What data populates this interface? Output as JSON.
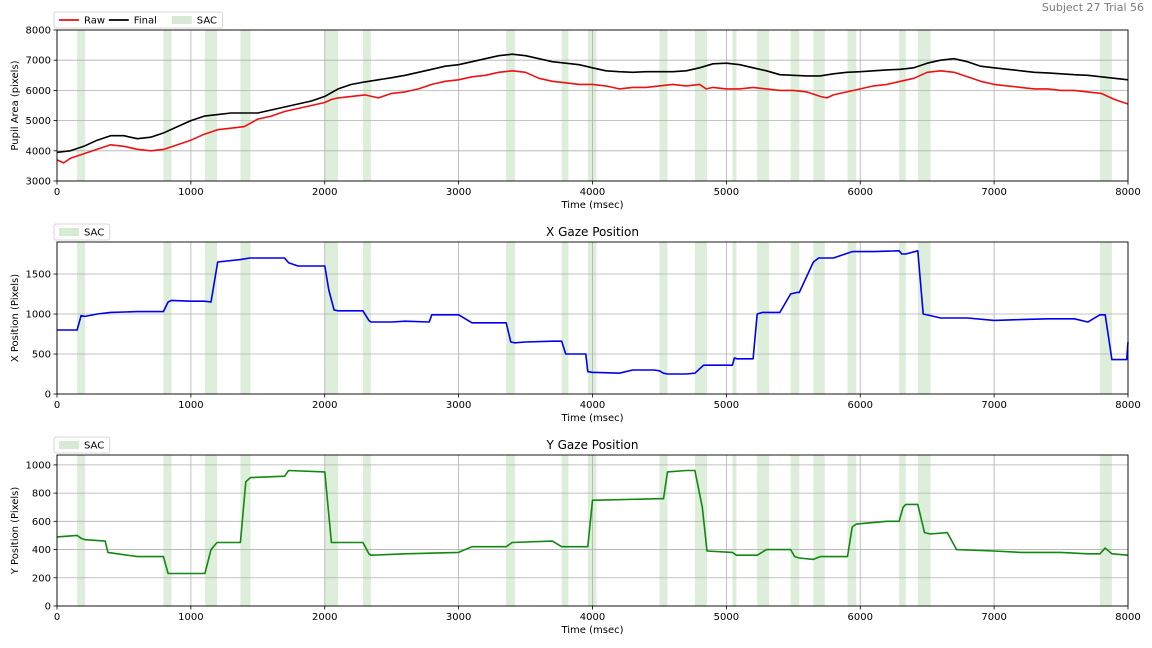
{
  "header": {
    "corner_label": "Subject 27 Trial 56"
  },
  "colors": {
    "raw": "#ee1111",
    "final": "#000000",
    "x_gaze": "#0000ee",
    "y_gaze": "#118811",
    "sac_fill": "#d7ebd4",
    "grid": "#b0b0b0"
  },
  "saccades": [
    [
      150,
      210
    ],
    [
      795,
      855
    ],
    [
      1105,
      1195
    ],
    [
      1370,
      1445
    ],
    [
      2000,
      2100
    ],
    [
      2285,
      2345
    ],
    [
      3355,
      3420
    ],
    [
      3770,
      3820
    ],
    [
      3965,
      4030
    ],
    [
      4500,
      4560
    ],
    [
      4765,
      4855
    ],
    [
      5045,
      5075
    ],
    [
      5230,
      5320
    ],
    [
      5480,
      5545
    ],
    [
      5650,
      5735
    ],
    [
      5905,
      5970
    ],
    [
      6290,
      6340
    ],
    [
      6430,
      6525
    ],
    [
      7790,
      7880
    ]
  ],
  "chart_data": [
    {
      "type": "line",
      "title": "",
      "xlabel": "Time (msec)",
      "ylabel": "Pupil Area (pixels)",
      "xlim": [
        0,
        8000
      ],
      "ylim": [
        3000,
        8000
      ],
      "xticks": [
        0,
        1000,
        2000,
        3000,
        4000,
        5000,
        6000,
        7000,
        8000
      ],
      "yticks": [
        3000,
        4000,
        5000,
        6000,
        7000,
        8000
      ],
      "grid": true,
      "legend": {
        "placement": "top-left",
        "entries": [
          "Raw",
          "Final",
          "SAC"
        ]
      },
      "series": [
        {
          "name": "Raw",
          "color": "#ee1111",
          "x": [
            0,
            50,
            100,
            200,
            300,
            400,
            500,
            600,
            700,
            800,
            900,
            1000,
            1100,
            1200,
            1300,
            1400,
            1500,
            1600,
            1700,
            1800,
            1900,
            2000,
            2050,
            2100,
            2200,
            2300,
            2400,
            2500,
            2600,
            2700,
            2800,
            2900,
            3000,
            3100,
            3200,
            3300,
            3400,
            3500,
            3600,
            3700,
            3800,
            3900,
            4000,
            4100,
            4200,
            4300,
            4400,
            4500,
            4600,
            4700,
            4800,
            4850,
            4900,
            5000,
            5100,
            5200,
            5300,
            5400,
            5500,
            5600,
            5700,
            5750,
            5800,
            5900,
            6000,
            6100,
            6200,
            6300,
            6400,
            6500,
            6600,
            6700,
            6800,
            6900,
            7000,
            7100,
            7200,
            7300,
            7400,
            7500,
            7600,
            7700,
            7800,
            7900,
            8000
          ],
          "y": [
            3700,
            3600,
            3750,
            3900,
            4050,
            4200,
            4150,
            4050,
            4000,
            4050,
            4200,
            4350,
            4550,
            4700,
            4750,
            4800,
            5050,
            5150,
            5300,
            5400,
            5500,
            5600,
            5700,
            5750,
            5800,
            5850,
            5750,
            5900,
            5950,
            6050,
            6200,
            6300,
            6350,
            6450,
            6500,
            6600,
            6650,
            6600,
            6400,
            6300,
            6250,
            6200,
            6200,
            6150,
            6050,
            6100,
            6100,
            6150,
            6200,
            6150,
            6200,
            6050,
            6100,
            6050,
            6050,
            6100,
            6050,
            6000,
            6000,
            5950,
            5800,
            5750,
            5850,
            5950,
            6050,
            6150,
            6200,
            6300,
            6400,
            6600,
            6650,
            6600,
            6450,
            6300,
            6200,
            6150,
            6100,
            6050,
            6050,
            6000,
            6000,
            5950,
            5900,
            5700,
            5550
          ]
        },
        {
          "name": "Final",
          "color": "#000000",
          "x": [
            0,
            100,
            200,
            300,
            400,
            500,
            600,
            700,
            800,
            900,
            1000,
            1100,
            1200,
            1300,
            1400,
            1500,
            1600,
            1700,
            1800,
            1900,
            2000,
            2100,
            2200,
            2300,
            2400,
            2500,
            2600,
            2700,
            2800,
            2900,
            3000,
            3100,
            3200,
            3300,
            3400,
            3500,
            3600,
            3700,
            3800,
            3900,
            4000,
            4100,
            4200,
            4300,
            4400,
            4500,
            4600,
            4700,
            4800,
            4900,
            5000,
            5100,
            5200,
            5300,
            5400,
            5500,
            5600,
            5700,
            5800,
            5900,
            6000,
            6100,
            6200,
            6300,
            6400,
            6500,
            6600,
            6700,
            6800,
            6900,
            7000,
            7100,
            7200,
            7300,
            7400,
            7500,
            7600,
            7700,
            7800,
            7900,
            8000
          ],
          "y": [
            3950,
            4000,
            4150,
            4350,
            4500,
            4500,
            4400,
            4450,
            4600,
            4800,
            5000,
            5150,
            5200,
            5250,
            5250,
            5250,
            5350,
            5450,
            5550,
            5650,
            5800,
            6050,
            6200,
            6280,
            6350,
            6420,
            6500,
            6600,
            6700,
            6800,
            6850,
            6950,
            7050,
            7150,
            7200,
            7150,
            7050,
            6950,
            6900,
            6850,
            6750,
            6650,
            6620,
            6600,
            6620,
            6620,
            6620,
            6650,
            6750,
            6880,
            6900,
            6850,
            6750,
            6650,
            6520,
            6500,
            6480,
            6480,
            6550,
            6600,
            6620,
            6650,
            6680,
            6700,
            6750,
            6900,
            7000,
            7050,
            6950,
            6800,
            6750,
            6700,
            6650,
            6600,
            6580,
            6550,
            6520,
            6500,
            6450,
            6400,
            6350
          ]
        }
      ]
    },
    {
      "type": "line",
      "title": "X Gaze Position",
      "xlabel": "Time (msec)",
      "ylabel": "X Position (Pixels)",
      "xlim": [
        0,
        8000
      ],
      "ylim": [
        0,
        1900
      ],
      "xticks": [
        0,
        1000,
        2000,
        3000,
        4000,
        5000,
        6000,
        7000,
        8000
      ],
      "yticks": [
        0,
        500,
        1000,
        1500
      ],
      "grid": true,
      "legend": {
        "placement": "top-left",
        "entries": [
          "SAC"
        ]
      },
      "series": [
        {
          "name": "",
          "color": "#0000ee",
          "x": [
            0,
            150,
            180,
            210,
            300,
            400,
            600,
            795,
            830,
            855,
            1000,
            1100,
            1150,
            1200,
            1370,
            1440,
            1600,
            1700,
            1730,
            1800,
            2000,
            2030,
            2070,
            2100,
            2285,
            2330,
            2345,
            2500,
            2600,
            2780,
            2800,
            2960,
            3000,
            3100,
            3200,
            3355,
            3390,
            3420,
            3500,
            3700,
            3770,
            3800,
            3820,
            3950,
            3965,
            4000,
            4030,
            4200,
            4300,
            4460,
            4500,
            4530,
            4560,
            4700,
            4765,
            4830,
            4855,
            5000,
            5045,
            5060,
            5080,
            5200,
            5230,
            5270,
            5320,
            5400,
            5480,
            5530,
            5545,
            5650,
            5690,
            5735,
            5800,
            5905,
            5940,
            5970,
            6100,
            6290,
            6310,
            6340,
            6430,
            6470,
            6525,
            6600,
            6800,
            7000,
            7200,
            7400,
            7600,
            7700,
            7790,
            7830,
            7880,
            7990,
            8000
          ],
          "y": [
            800,
            800,
            980,
            970,
            1000,
            1020,
            1030,
            1030,
            1150,
            1170,
            1160,
            1160,
            1150,
            1650,
            1680,
            1700,
            1700,
            1700,
            1640,
            1600,
            1600,
            1300,
            1050,
            1040,
            1040,
            920,
            900,
            900,
            910,
            900,
            990,
            990,
            990,
            890,
            890,
            890,
            650,
            640,
            650,
            660,
            660,
            500,
            500,
            500,
            280,
            270,
            270,
            260,
            300,
            300,
            290,
            260,
            250,
            250,
            260,
            360,
            360,
            360,
            360,
            450,
            440,
            440,
            1000,
            1020,
            1020,
            1020,
            1250,
            1270,
            1270,
            1650,
            1700,
            1700,
            1700,
            1760,
            1780,
            1780,
            1780,
            1790,
            1750,
            1750,
            1790,
            1000,
            980,
            950,
            950,
            920,
            930,
            940,
            940,
            900,
            990,
            990,
            430,
            430,
            650
          ]
        }
      ]
    },
    {
      "type": "line",
      "title": "Y Gaze Position",
      "xlabel": "Time (msec)",
      "ylabel": "Y Position (Pixels)",
      "xlim": [
        0,
        8000
      ],
      "ylim": [
        0,
        1070
      ],
      "xticks": [
        0,
        1000,
        2000,
        3000,
        4000,
        5000,
        6000,
        7000,
        8000
      ],
      "yticks": [
        0,
        200,
        400,
        600,
        800,
        1000
      ],
      "grid": true,
      "legend": {
        "placement": "top-left",
        "entries": [
          "SAC"
        ]
      },
      "series": [
        {
          "name": "",
          "color": "#118811",
          "x": [
            0,
            150,
            180,
            210,
            360,
            380,
            600,
            795,
            830,
            855,
            1000,
            1105,
            1150,
            1195,
            1300,
            1370,
            1410,
            1445,
            1700,
            1730,
            2000,
            2050,
            2100,
            2285,
            2330,
            2345,
            2600,
            3000,
            3100,
            3355,
            3400,
            3700,
            3770,
            3800,
            3950,
            3965,
            4000,
            4030,
            4500,
            4530,
            4560,
            4700,
            4765,
            4820,
            4855,
            5045,
            5075,
            5230,
            5300,
            5480,
            5510,
            5545,
            5650,
            5700,
            5905,
            5940,
            5970,
            6200,
            6290,
            6320,
            6340,
            6430,
            6480,
            6525,
            6650,
            6720,
            7000,
            7200,
            7500,
            7700,
            7790,
            7830,
            7880,
            8000
          ],
          "y": [
            490,
            500,
            480,
            470,
            460,
            380,
            350,
            350,
            230,
            230,
            230,
            230,
            400,
            450,
            450,
            450,
            880,
            910,
            920,
            960,
            950,
            450,
            450,
            450,
            370,
            360,
            370,
            380,
            420,
            420,
            450,
            460,
            420,
            420,
            420,
            420,
            750,
            750,
            760,
            760,
            950,
            960,
            960,
            700,
            390,
            380,
            360,
            360,
            400,
            400,
            350,
            340,
            330,
            350,
            350,
            560,
            580,
            600,
            600,
            700,
            720,
            720,
            520,
            510,
            520,
            400,
            390,
            380,
            380,
            370,
            370,
            410,
            370,
            360
          ]
        }
      ]
    }
  ]
}
